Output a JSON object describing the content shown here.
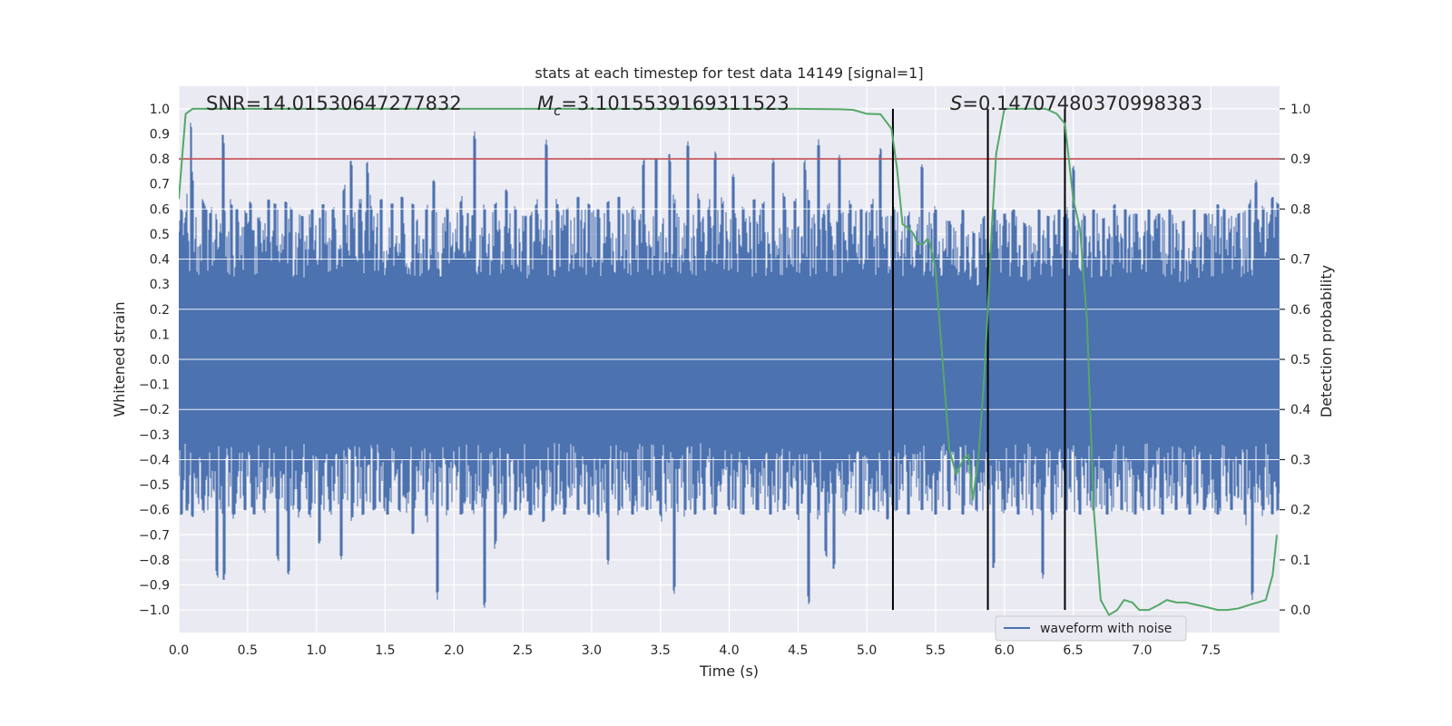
{
  "chart_data": {
    "type": "line",
    "title": "stats at each timestep for test data 14149 [signal=1]",
    "xlabel": "Time (s)",
    "ylabel_left": "Whitened strain",
    "ylabel_right": "Detection probability",
    "xlim": [
      0,
      8
    ],
    "ylim_left": [
      -1.09,
      1.09
    ],
    "ylim_right": [
      -0.045,
      1.045
    ],
    "x_ticks": [
      "0.0",
      "0.5",
      "1.0",
      "1.5",
      "2.0",
      "2.5",
      "3.0",
      "3.5",
      "4.0",
      "4.5",
      "5.0",
      "5.5",
      "6.0",
      "6.5",
      "7.0",
      "7.5"
    ],
    "y_left_ticks": [
      "-1.0",
      "-0.9",
      "-0.8",
      "-0.7",
      "-0.6",
      "-0.5",
      "-0.4",
      "-0.3",
      "-0.2",
      "-0.1",
      "0.0",
      "0.1",
      "0.2",
      "0.3",
      "0.4",
      "0.5",
      "0.6",
      "0.7",
      "0.8",
      "0.9",
      "1.0"
    ],
    "y_right_ticks": [
      "0.0",
      "0.1",
      "0.2",
      "0.3",
      "0.4",
      "0.5",
      "0.6",
      "0.7",
      "0.8",
      "0.9",
      "1.0"
    ],
    "annotations": {
      "snr": "SNR=14.01530647277832",
      "mc_symbol": "M",
      "mc_sub": "c",
      "mc_value": "=3.1015539169311523",
      "s_symbol": "S",
      "s_value": "=0.14707480370998383"
    },
    "threshold": {
      "value": 0.8,
      "axis": "left",
      "color": "#c44e52"
    },
    "vlines": [
      5.19,
      5.88,
      6.44
    ],
    "legend": {
      "label": "waveform with noise",
      "position": "lower-right"
    },
    "series": [
      {
        "name": "waveform with noise",
        "axis": "left",
        "color": "#4c72b0",
        "envelope_positive": [
          [
            0.02,
            0.6
          ],
          [
            0.05,
            0.56
          ],
          [
            0.09,
            0.99
          ],
          [
            0.1,
            0.72
          ],
          [
            0.18,
            0.63
          ],
          [
            0.2,
            0.6
          ],
          [
            0.23,
            0.58
          ],
          [
            0.32,
            0.91
          ],
          [
            0.38,
            0.62
          ],
          [
            0.42,
            0.6
          ],
          [
            0.52,
            0.63
          ],
          [
            0.58,
            0.56
          ],
          [
            0.65,
            0.64
          ],
          [
            0.7,
            0.62
          ],
          [
            0.78,
            0.63
          ],
          [
            0.82,
            0.6
          ],
          [
            0.9,
            0.57
          ],
          [
            0.97,
            0.6
          ],
          [
            1.05,
            0.62
          ],
          [
            1.12,
            0.6
          ],
          [
            1.2,
            0.68
          ],
          [
            1.25,
            0.8
          ],
          [
            1.32,
            0.62
          ],
          [
            1.37,
            0.8
          ],
          [
            1.4,
            0.6
          ],
          [
            1.47,
            0.64
          ],
          [
            1.55,
            0.62
          ],
          [
            1.62,
            0.65
          ],
          [
            1.7,
            0.62
          ],
          [
            1.8,
            0.6
          ],
          [
            1.85,
            0.72
          ],
          [
            1.95,
            0.6
          ],
          [
            2.05,
            0.63
          ],
          [
            2.15,
            0.91
          ],
          [
            2.22,
            0.6
          ],
          [
            2.3,
            0.62
          ],
          [
            2.38,
            0.68
          ],
          [
            2.45,
            0.6
          ],
          [
            2.52,
            0.57
          ],
          [
            2.6,
            0.62
          ],
          [
            2.67,
            0.88
          ],
          [
            2.75,
            0.62
          ],
          [
            2.82,
            0.6
          ],
          [
            2.9,
            0.65
          ],
          [
            2.98,
            0.62
          ],
          [
            3.05,
            0.6
          ],
          [
            3.12,
            0.63
          ],
          [
            3.2,
            0.65
          ],
          [
            3.3,
            0.6
          ],
          [
            3.38,
            0.8
          ],
          [
            3.47,
            0.8
          ],
          [
            3.57,
            0.82
          ],
          [
            3.6,
            0.62
          ],
          [
            3.7,
            0.87
          ],
          [
            3.78,
            0.64
          ],
          [
            3.85,
            0.6
          ],
          [
            3.9,
            0.84
          ],
          [
            3.95,
            0.62
          ],
          [
            4.03,
            0.74
          ],
          [
            4.1,
            0.6
          ],
          [
            4.18,
            0.64
          ],
          [
            4.25,
            0.62
          ],
          [
            4.32,
            0.8
          ],
          [
            4.4,
            0.65
          ],
          [
            4.48,
            0.63
          ],
          [
            4.55,
            0.8
          ],
          [
            4.58,
            0.62
          ],
          [
            4.65,
            0.88
          ],
          [
            4.72,
            0.6
          ],
          [
            4.8,
            0.82
          ],
          [
            4.88,
            0.62
          ],
          [
            4.96,
            0.6
          ],
          [
            5.04,
            0.62
          ],
          [
            5.1,
            0.85
          ],
          [
            5.2,
            0.6
          ],
          [
            5.3,
            0.57
          ],
          [
            5.4,
            0.78
          ],
          [
            5.5,
            0.6
          ],
          [
            5.6,
            0.55
          ],
          [
            5.7,
            0.6
          ],
          [
            5.78,
            0.5
          ],
          [
            5.85,
            0.57
          ],
          [
            5.93,
            0.6
          ],
          [
            6.0,
            0.58
          ],
          [
            6.07,
            0.6
          ],
          [
            6.15,
            0.54
          ],
          [
            6.25,
            0.6
          ],
          [
            6.32,
            0.57
          ],
          [
            6.4,
            0.6
          ],
          [
            6.45,
            0.58
          ],
          [
            6.5,
            0.78
          ],
          [
            6.58,
            0.57
          ],
          [
            6.65,
            0.6
          ],
          [
            6.72,
            0.56
          ],
          [
            6.8,
            0.62
          ],
          [
            6.88,
            0.6
          ],
          [
            6.96,
            0.58
          ],
          [
            7.05,
            0.6
          ],
          [
            7.12,
            0.58
          ],
          [
            7.2,
            0.6
          ],
          [
            7.3,
            0.55
          ],
          [
            7.38,
            0.6
          ],
          [
            7.46,
            0.58
          ],
          [
            7.55,
            0.62
          ],
          [
            7.6,
            0.6
          ],
          [
            7.7,
            0.58
          ],
          [
            7.78,
            0.62
          ],
          [
            7.83,
            0.72
          ],
          [
            7.88,
            0.6
          ],
          [
            7.95,
            0.65
          ],
          [
            7.99,
            0.62
          ]
        ],
        "envelope_negative": [
          [
            0.02,
            -0.62
          ],
          [
            0.06,
            -0.6
          ],
          [
            0.1,
            -0.63
          ],
          [
            0.18,
            -0.6
          ],
          [
            0.28,
            -0.87
          ],
          [
            0.33,
            -0.88
          ],
          [
            0.4,
            -0.62
          ],
          [
            0.48,
            -0.6
          ],
          [
            0.55,
            -0.62
          ],
          [
            0.62,
            -0.6
          ],
          [
            0.72,
            -0.8
          ],
          [
            0.8,
            -0.86
          ],
          [
            0.88,
            -0.6
          ],
          [
            0.95,
            -0.62
          ],
          [
            1.02,
            -0.74
          ],
          [
            1.1,
            -0.6
          ],
          [
            1.18,
            -0.8
          ],
          [
            1.26,
            -0.63
          ],
          [
            1.34,
            -0.62
          ],
          [
            1.42,
            -0.6
          ],
          [
            1.52,
            -0.62
          ],
          [
            1.6,
            -0.6
          ],
          [
            1.7,
            -0.7
          ],
          [
            1.8,
            -0.62
          ],
          [
            1.88,
            -0.96
          ],
          [
            1.95,
            -0.6
          ],
          [
            2.05,
            -0.62
          ],
          [
            2.14,
            -0.6
          ],
          [
            2.22,
            -1.0
          ],
          [
            2.3,
            -0.74
          ],
          [
            2.37,
            -0.62
          ],
          [
            2.45,
            -0.6
          ],
          [
            2.55,
            -0.62
          ],
          [
            2.65,
            -0.65
          ],
          [
            2.72,
            -0.6
          ],
          [
            2.8,
            -0.62
          ],
          [
            2.9,
            -0.6
          ],
          [
            2.98,
            -0.62
          ],
          [
            3.05,
            -0.62
          ],
          [
            3.12,
            -0.82
          ],
          [
            3.2,
            -0.6
          ],
          [
            3.3,
            -0.62
          ],
          [
            3.4,
            -0.6
          ],
          [
            3.5,
            -0.62
          ],
          [
            3.6,
            -0.94
          ],
          [
            3.68,
            -0.6
          ],
          [
            3.75,
            -0.62
          ],
          [
            3.82,
            -0.6
          ],
          [
            3.9,
            -0.62
          ],
          [
            4.0,
            -0.6
          ],
          [
            4.1,
            -0.62
          ],
          [
            4.2,
            -0.6
          ],
          [
            4.3,
            -0.62
          ],
          [
            4.4,
            -0.6
          ],
          [
            4.5,
            -0.62
          ],
          [
            4.58,
            -0.99
          ],
          [
            4.65,
            -0.6
          ],
          [
            4.7,
            -0.78
          ],
          [
            4.76,
            -0.84
          ],
          [
            4.85,
            -0.6
          ],
          [
            4.95,
            -0.62
          ],
          [
            5.05,
            -0.6
          ],
          [
            5.15,
            -0.64
          ],
          [
            5.22,
            -0.6
          ],
          [
            5.3,
            -0.62
          ],
          [
            5.4,
            -0.6
          ],
          [
            5.5,
            -0.62
          ],
          [
            5.6,
            -0.6
          ],
          [
            5.7,
            -0.62
          ],
          [
            5.8,
            -0.6
          ],
          [
            5.92,
            -0.84
          ],
          [
            6.0,
            -0.6
          ],
          [
            6.1,
            -0.62
          ],
          [
            6.2,
            -0.6
          ],
          [
            6.28,
            -0.88
          ],
          [
            6.35,
            -0.62
          ],
          [
            6.45,
            -0.6
          ],
          [
            6.55,
            -0.62
          ],
          [
            6.65,
            -0.6
          ],
          [
            6.75,
            -0.62
          ],
          [
            6.85,
            -0.6
          ],
          [
            6.95,
            -0.62
          ],
          [
            7.05,
            -0.6
          ],
          [
            7.15,
            -0.62
          ],
          [
            7.25,
            -0.6
          ],
          [
            7.35,
            -0.62
          ],
          [
            7.45,
            -0.6
          ],
          [
            7.55,
            -0.62
          ],
          [
            7.65,
            -0.6
          ],
          [
            7.75,
            -0.62
          ],
          [
            7.8,
            -0.97
          ],
          [
            7.88,
            -0.6
          ],
          [
            7.95,
            -0.62
          ],
          [
            7.99,
            -0.6
          ]
        ]
      },
      {
        "name": "",
        "axis": "right",
        "color": "#55a868",
        "points": [
          [
            0.0,
            0.82
          ],
          [
            0.05,
            0.99
          ],
          [
            0.1,
            1.0
          ],
          [
            1.0,
            1.0
          ],
          [
            2.0,
            1.0
          ],
          [
            3.0,
            1.0
          ],
          [
            4.0,
            1.0
          ],
          [
            4.5,
            1.0
          ],
          [
            4.8,
            0.999
          ],
          [
            4.9,
            0.998
          ],
          [
            5.0,
            0.99
          ],
          [
            5.1,
            0.989
          ],
          [
            5.18,
            0.96
          ],
          [
            5.22,
            0.88
          ],
          [
            5.26,
            0.77
          ],
          [
            5.31,
            0.76
          ],
          [
            5.34,
            0.75
          ],
          [
            5.37,
            0.73
          ],
          [
            5.41,
            0.73
          ],
          [
            5.44,
            0.74
          ],
          [
            5.46,
            0.73
          ],
          [
            5.5,
            0.68
          ],
          [
            5.55,
            0.5
          ],
          [
            5.6,
            0.32
          ],
          [
            5.65,
            0.27
          ],
          [
            5.7,
            0.3
          ],
          [
            5.74,
            0.31
          ],
          [
            5.77,
            0.22
          ],
          [
            5.81,
            0.3
          ],
          [
            5.85,
            0.45
          ],
          [
            5.88,
            0.6
          ],
          [
            5.91,
            0.77
          ],
          [
            5.94,
            0.91
          ],
          [
            6.0,
            1.0
          ],
          [
            6.1,
            1.0
          ],
          [
            6.2,
            1.0
          ],
          [
            6.3,
            1.0
          ],
          [
            6.38,
            0.99
          ],
          [
            6.44,
            0.97
          ],
          [
            6.5,
            0.82
          ],
          [
            6.55,
            0.76
          ],
          [
            6.6,
            0.58
          ],
          [
            6.65,
            0.2
          ],
          [
            6.7,
            0.02
          ],
          [
            6.76,
            -0.01
          ],
          [
            6.82,
            0.0
          ],
          [
            6.87,
            0.02
          ],
          [
            6.93,
            0.015
          ],
          [
            6.98,
            0.0
          ],
          [
            7.05,
            0.0
          ],
          [
            7.12,
            0.01
          ],
          [
            7.18,
            0.02
          ],
          [
            7.25,
            0.015
          ],
          [
            7.32,
            0.015
          ],
          [
            7.4,
            0.01
          ],
          [
            7.48,
            0.005
          ],
          [
            7.55,
            0.0
          ],
          [
            7.62,
            0.0
          ],
          [
            7.7,
            0.003
          ],
          [
            7.78,
            0.01
          ],
          [
            7.84,
            0.015
          ],
          [
            7.9,
            0.02
          ],
          [
            7.95,
            0.07
          ],
          [
            7.98,
            0.15
          ]
        ]
      }
    ],
    "grid": true,
    "colors": {
      "background": "#eaeaf2",
      "grid": "#ffffff",
      "waveform": "#4c72b0",
      "probability": "#55a868",
      "threshold": "#c44e52",
      "vline": "#000000"
    }
  }
}
